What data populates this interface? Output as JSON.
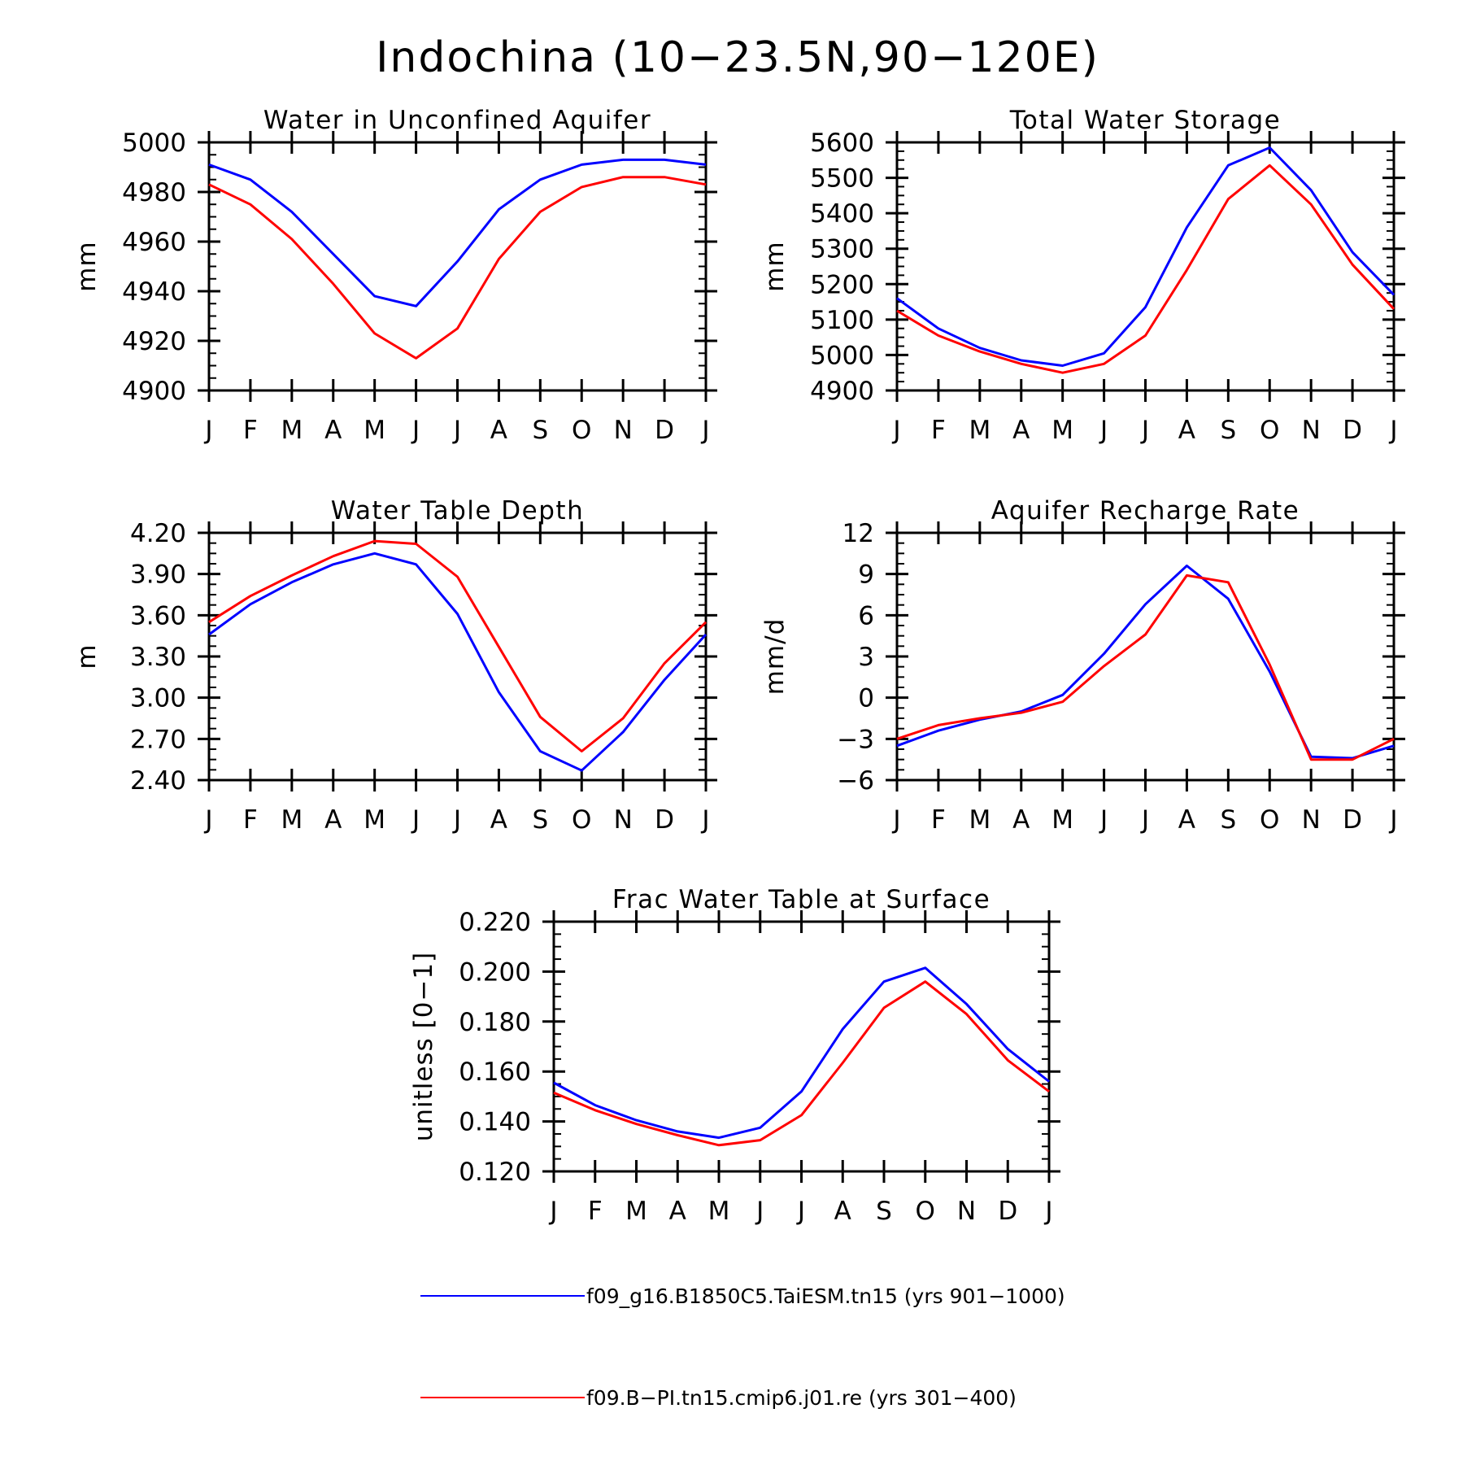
{
  "figure_title": "Indochina (10-23.5N,90-120E)",
  "legend": [
    {
      "label": "f09_g16.B1850C5.TaiESM.tn15 (yrs 901-1000)",
      "color": "#0000ff"
    },
    {
      "label": "f09.B-PI.tn15.cmip6.j01.re (yrs 301-400)",
      "color": "#ff0000"
    }
  ],
  "chart_data": [
    {
      "type": "line",
      "title": "Water in Unconfined Aquifer",
      "xlabel": "",
      "ylabel": "mm",
      "categories": [
        "J",
        "F",
        "M",
        "A",
        "M",
        "J",
        "J",
        "A",
        "S",
        "O",
        "N",
        "D",
        "J"
      ],
      "ylim": [
        4900,
        5000
      ],
      "yticks": [
        "4900",
        "4920",
        "4940",
        "4960",
        "4980",
        "5000"
      ],
      "ytick_values": [
        4900,
        4920,
        4940,
        4960,
        4980,
        5000
      ],
      "minor_ytick_step": 5,
      "series": [
        {
          "color": "#0000ff",
          "values": [
            4991,
            4985,
            4972,
            4955,
            4938,
            4934,
            4952,
            4973,
            4985,
            4991,
            4993,
            4993,
            4991
          ]
        },
        {
          "color": "#ff0000",
          "values": [
            4983,
            4975,
            4961,
            4943,
            4923,
            4913,
            4925,
            4953,
            4972,
            4982,
            4986,
            4986,
            4983
          ]
        }
      ]
    },
    {
      "type": "line",
      "title": "Total Water Storage",
      "xlabel": "",
      "ylabel": "mm",
      "categories": [
        "J",
        "F",
        "M",
        "A",
        "M",
        "J",
        "J",
        "A",
        "S",
        "O",
        "N",
        "D",
        "J"
      ],
      "ylim": [
        4900,
        5600
      ],
      "yticks": [
        "4900",
        "5000",
        "5100",
        "5200",
        "5300",
        "5400",
        "5500",
        "5600"
      ],
      "ytick_values": [
        4900,
        5000,
        5100,
        5200,
        5300,
        5400,
        5500,
        5600
      ],
      "minor_ytick_step": 25,
      "series": [
        {
          "color": "#0000ff",
          "values": [
            5160,
            5075,
            5020,
            4985,
            4970,
            5005,
            5135,
            5360,
            5535,
            5585,
            5465,
            5290,
            5170
          ]
        },
        {
          "color": "#ff0000",
          "values": [
            5125,
            5055,
            5010,
            4975,
            4950,
            4975,
            5055,
            5240,
            5440,
            5535,
            5425,
            5255,
            5130
          ]
        }
      ]
    },
    {
      "type": "line",
      "title": "Water Table Depth",
      "xlabel": "",
      "ylabel": "m",
      "categories": [
        "J",
        "F",
        "M",
        "A",
        "M",
        "J",
        "J",
        "A",
        "S",
        "O",
        "N",
        "D",
        "J"
      ],
      "ylim": [
        2.4,
        4.2
      ],
      "yticks": [
        "2.40",
        "2.70",
        "3.00",
        "3.30",
        "3.60",
        "3.90",
        "4.20"
      ],
      "ytick_values": [
        2.4,
        2.7,
        3.0,
        3.3,
        3.6,
        3.9,
        4.2
      ],
      "minor_ytick_step": 0.075,
      "series": [
        {
          "color": "#0000ff",
          "values": [
            3.46,
            3.68,
            3.84,
            3.97,
            4.05,
            3.97,
            3.61,
            3.04,
            2.61,
            2.47,
            2.75,
            3.13,
            3.46
          ]
        },
        {
          "color": "#ff0000",
          "values": [
            3.55,
            3.74,
            3.89,
            4.03,
            4.14,
            4.12,
            3.88,
            3.37,
            2.86,
            2.61,
            2.85,
            3.25,
            3.55
          ]
        }
      ]
    },
    {
      "type": "line",
      "title": "Aquifer Recharge Rate",
      "xlabel": "",
      "ylabel": "mm/d",
      "categories": [
        "J",
        "F",
        "M",
        "A",
        "M",
        "J",
        "J",
        "A",
        "S",
        "O",
        "N",
        "D",
        "J"
      ],
      "ylim": [
        -6,
        12
      ],
      "yticks": [
        "-6",
        "-3",
        "0",
        "3",
        "6",
        "9",
        "12"
      ],
      "ytick_values": [
        -6,
        -3,
        0,
        3,
        6,
        9,
        12
      ],
      "minor_ytick_step": 0.75,
      "series": [
        {
          "color": "#0000ff",
          "values": [
            -3.5,
            -2.4,
            -1.6,
            -1.0,
            0.2,
            3.2,
            6.8,
            9.6,
            7.2,
            1.9,
            -4.3,
            -4.4,
            -3.5
          ]
        },
        {
          "color": "#ff0000",
          "values": [
            -3.0,
            -2.0,
            -1.5,
            -1.1,
            -0.3,
            2.3,
            4.6,
            8.9,
            8.4,
            2.4,
            -4.5,
            -4.5,
            -3.0
          ]
        }
      ]
    },
    {
      "type": "line",
      "title": "Frac Water Table at Surface",
      "xlabel": "",
      "ylabel": "unitless [0-1]",
      "categories": [
        "J",
        "F",
        "M",
        "A",
        "M",
        "J",
        "J",
        "A",
        "S",
        "O",
        "N",
        "D",
        "J"
      ],
      "ylim": [
        0.12,
        0.22
      ],
      "yticks": [
        "0.120",
        "0.140",
        "0.160",
        "0.180",
        "0.200",
        "0.220"
      ],
      "ytick_values": [
        0.12,
        0.14,
        0.16,
        0.18,
        0.2,
        0.22
      ],
      "minor_ytick_step": 0.005,
      "series": [
        {
          "color": "#0000ff",
          "values": [
            0.1555,
            0.1465,
            0.1405,
            0.136,
            0.1335,
            0.1375,
            0.152,
            0.177,
            0.196,
            0.2015,
            0.187,
            0.169,
            0.156
          ]
        },
        {
          "color": "#ff0000",
          "values": [
            0.1515,
            0.1445,
            0.139,
            0.1345,
            0.1305,
            0.1325,
            0.1425,
            0.1635,
            0.1855,
            0.196,
            0.183,
            0.1645,
            0.152
          ]
        }
      ]
    }
  ]
}
